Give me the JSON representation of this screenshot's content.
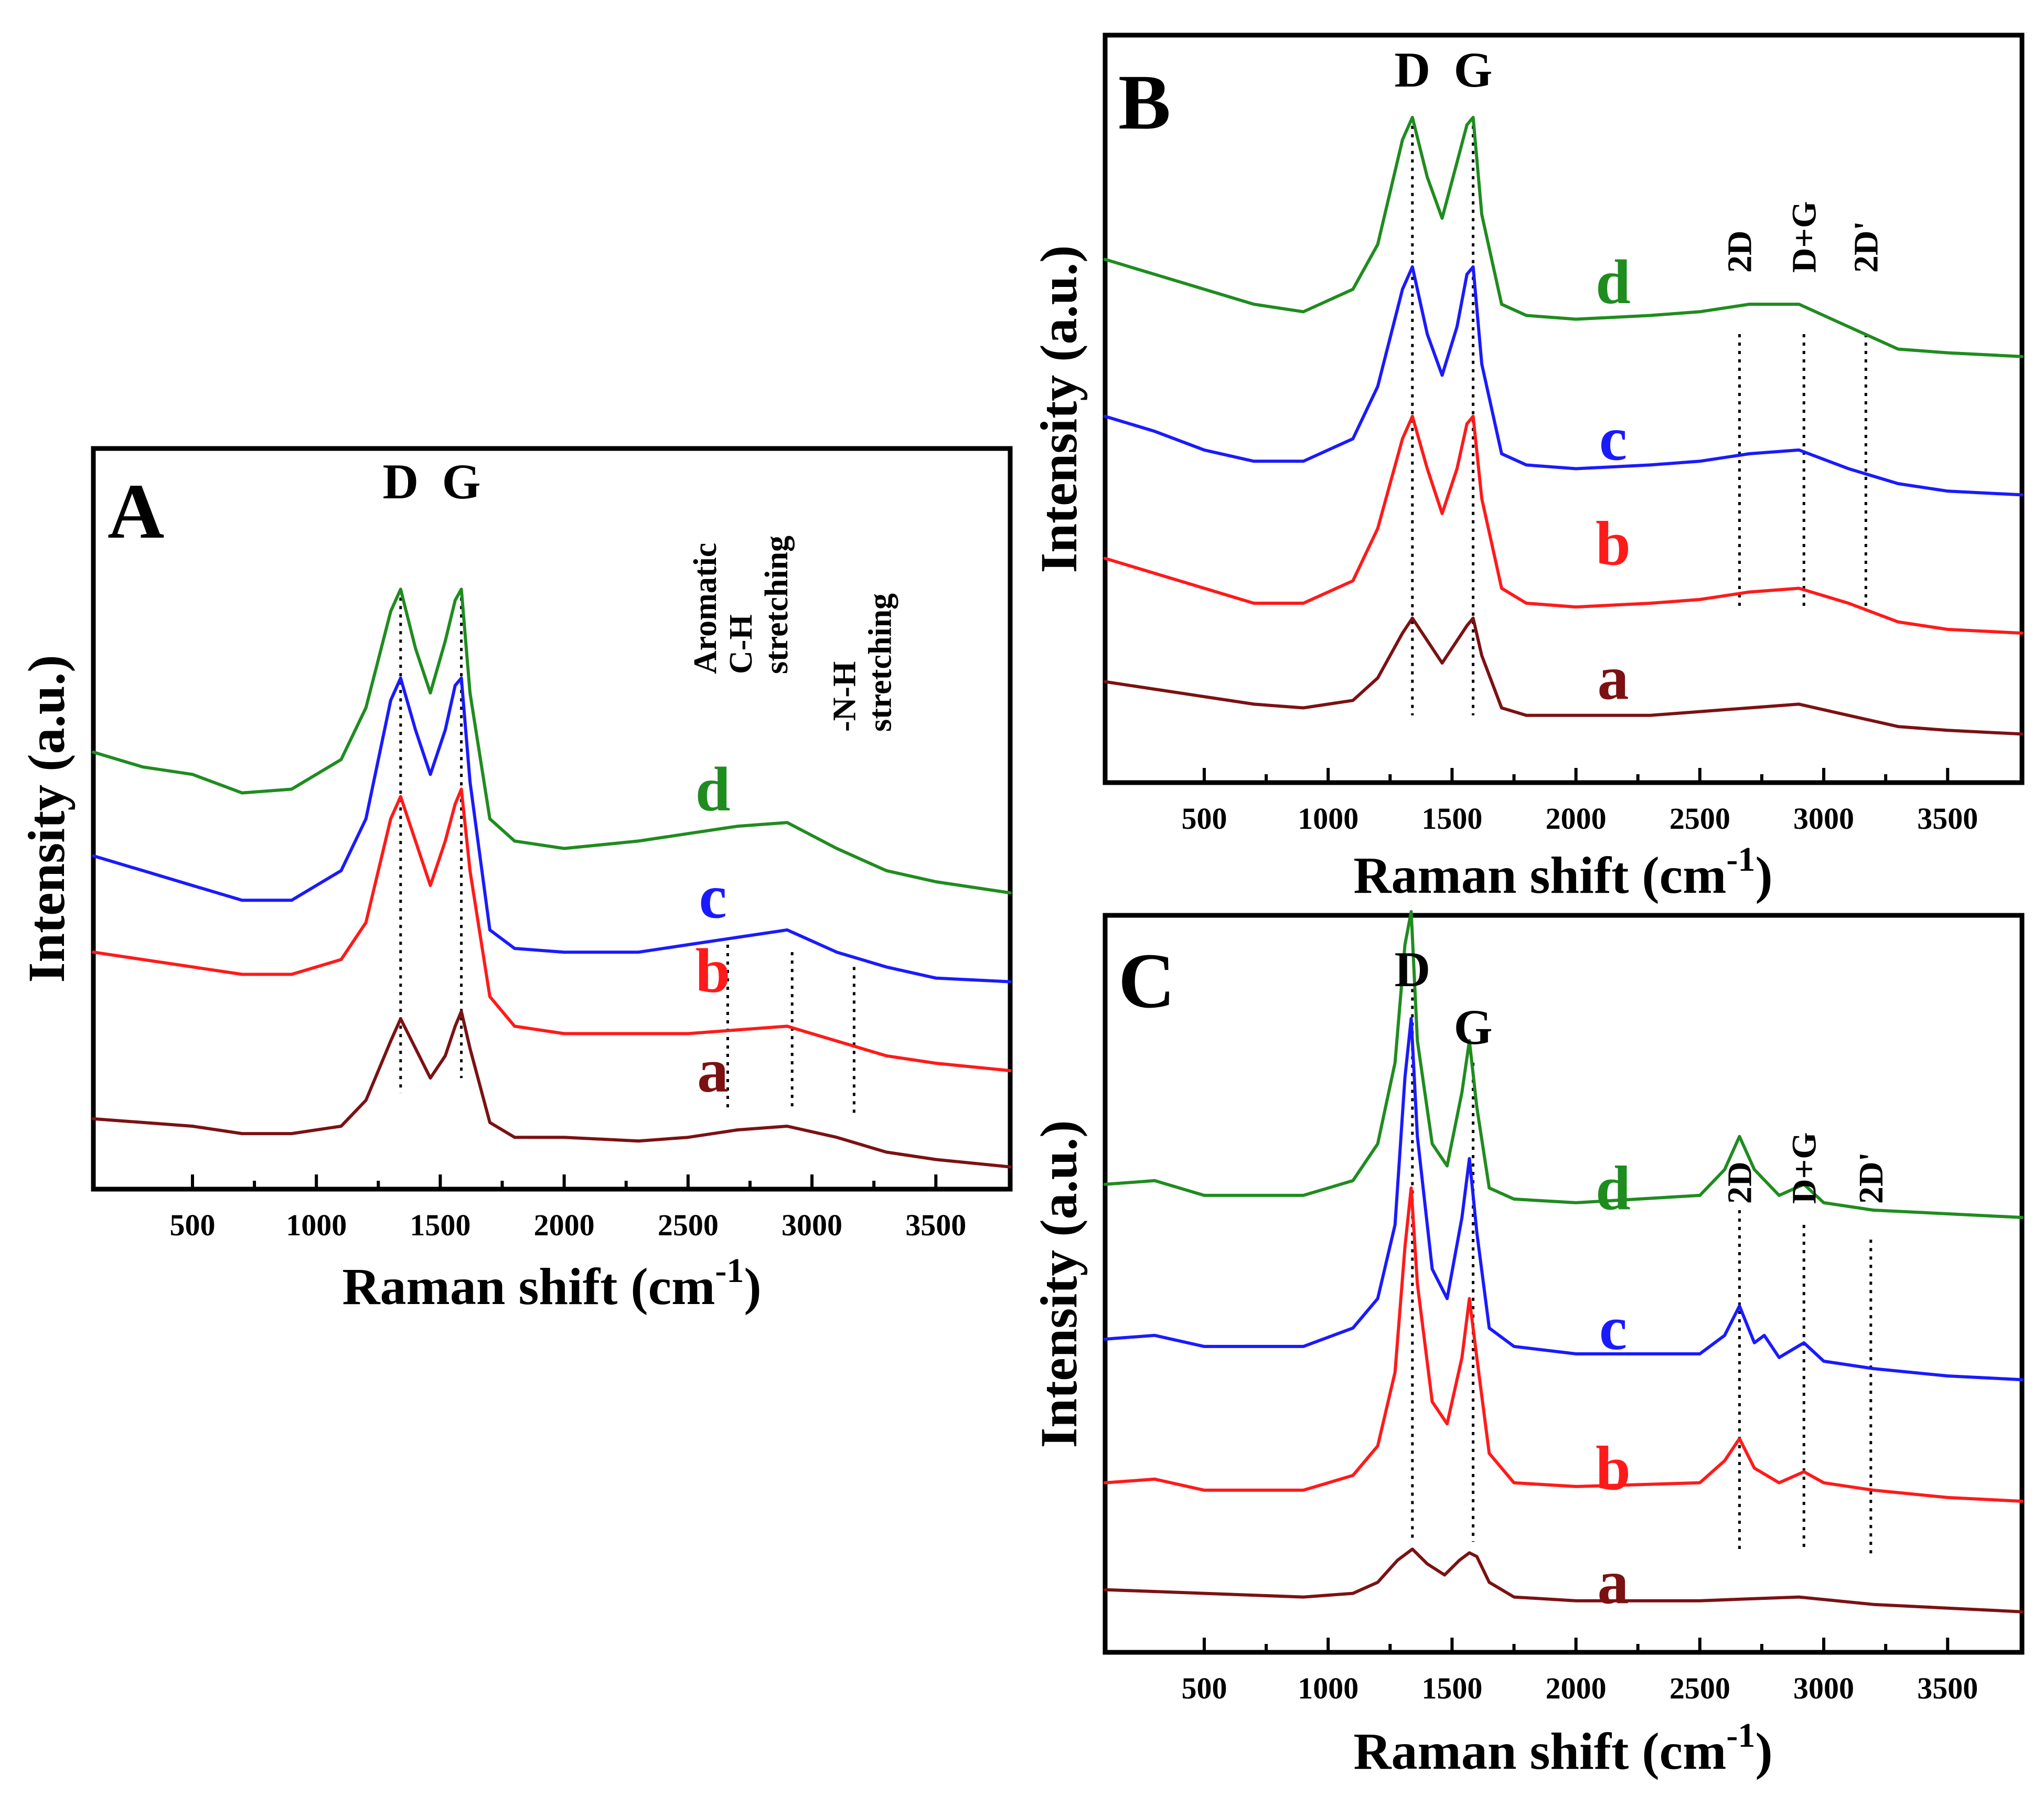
{
  "chart_data": [
    {
      "type": "line",
      "panel_label": "A",
      "xlabel": "Raman shift (cm",
      "xlabel_sup": "-1",
      "xlabel_close": ")",
      "ylabel": "Intensity (a.u.)",
      "xlim": [
        100,
        3800
      ],
      "ylim": [
        0,
        10
      ],
      "xticks": [
        "500",
        "1000",
        "1500",
        "2000",
        "2500",
        "3000",
        "3500"
      ],
      "peak_labels": [
        {
          "text": "D",
          "x": 1340
        },
        {
          "text": "G",
          "x": 1585
        }
      ],
      "guide_lines": [
        {
          "x": 1340,
          "y_top": 8.1,
          "y_bottom": 1.3
        },
        {
          "x": 1585,
          "y_top": 8.1,
          "y_bottom": 1.5
        },
        {
          "x": 2660,
          "y_top": 3.3,
          "y_bottom": 1.1
        },
        {
          "x": 2920,
          "y_top": 3.2,
          "y_bottom": 1.1
        },
        {
          "x": 3170,
          "y_top": 3.0,
          "y_bottom": 1.0
        }
      ],
      "annotations": [
        {
          "lines": [
            "Aromatic",
            "C-H",
            "stretching"
          ],
          "x": 2710
        },
        {
          "lines": [
            "-N-H",
            "stretching"
          ],
          "x": 3200
        }
      ],
      "series": [
        {
          "name": "a",
          "color": "#7b1113",
          "x": [
            100,
            300,
            500,
            700,
            900,
            1100,
            1200,
            1300,
            1340,
            1400,
            1460,
            1520,
            1560,
            1585,
            1620,
            1700,
            1800,
            2000,
            2300,
            2500,
            2700,
            2900,
            3100,
            3300,
            3500,
            3800
          ],
          "y": [
            0.95,
            0.9,
            0.85,
            0.75,
            0.75,
            0.85,
            1.2,
            2.0,
            2.3,
            1.9,
            1.5,
            1.8,
            2.2,
            2.4,
            1.9,
            0.9,
            0.7,
            0.7,
            0.65,
            0.7,
            0.8,
            0.85,
            0.7,
            0.5,
            0.4,
            0.3
          ]
        },
        {
          "name": "b",
          "color": "#ff1a1a",
          "x": [
            100,
            300,
            500,
            700,
            900,
            1100,
            1200,
            1300,
            1340,
            1400,
            1460,
            1520,
            1560,
            1585,
            1620,
            1700,
            1800,
            2000,
            2300,
            2500,
            2700,
            2900,
            3100,
            3300,
            3500,
            3800
          ],
          "y": [
            3.2,
            3.1,
            3.0,
            2.9,
            2.9,
            3.1,
            3.6,
            5.0,
            5.3,
            4.7,
            4.1,
            4.7,
            5.2,
            5.4,
            4.3,
            2.6,
            2.2,
            2.1,
            2.1,
            2.1,
            2.15,
            2.2,
            2.0,
            1.8,
            1.7,
            1.6
          ]
        },
        {
          "name": "c",
          "color": "#1a1aff",
          "x": [
            100,
            300,
            500,
            700,
            900,
            1100,
            1200,
            1300,
            1340,
            1400,
            1460,
            1520,
            1560,
            1585,
            1620,
            1700,
            1800,
            2000,
            2300,
            2500,
            2700,
            2900,
            3100,
            3300,
            3500,
            3800
          ],
          "y": [
            4.5,
            4.3,
            4.1,
            3.9,
            3.9,
            4.3,
            5.0,
            6.6,
            6.9,
            6.2,
            5.6,
            6.2,
            6.8,
            6.9,
            5.5,
            3.5,
            3.25,
            3.2,
            3.2,
            3.3,
            3.4,
            3.5,
            3.2,
            3.0,
            2.85,
            2.8
          ]
        },
        {
          "name": "d",
          "color": "#1f8c1f",
          "x": [
            100,
            300,
            500,
            700,
            900,
            1100,
            1200,
            1300,
            1340,
            1400,
            1460,
            1520,
            1560,
            1585,
            1620,
            1700,
            1800,
            2000,
            2300,
            2500,
            2700,
            2900,
            3100,
            3300,
            3500,
            3800
          ],
          "y": [
            5.9,
            5.7,
            5.6,
            5.35,
            5.4,
            5.8,
            6.5,
            7.8,
            8.1,
            7.3,
            6.7,
            7.4,
            7.95,
            8.1,
            6.7,
            5.0,
            4.7,
            4.6,
            4.7,
            4.8,
            4.9,
            4.95,
            4.6,
            4.3,
            4.15,
            4.0
          ]
        }
      ],
      "series_labels": [
        {
          "text": "a",
          "color": "#7b1113",
          "x": 2600,
          "y": 1.6
        },
        {
          "text": "b",
          "color": "#ff1a1a",
          "x": 2600,
          "y": 2.95
        },
        {
          "text": "c",
          "color": "#1a1aff",
          "x": 2600,
          "y": 3.95
        },
        {
          "text": "d",
          "color": "#1f8c1f",
          "x": 2600,
          "y": 5.4
        }
      ]
    },
    {
      "type": "line",
      "panel_label": "B",
      "xlabel": "Raman shift (cm",
      "xlabel_sup": "-1",
      "xlabel_close": ")",
      "ylabel": "Intensity (a.u.)",
      "xlim": [
        100,
        3800
      ],
      "ylim": [
        0,
        10
      ],
      "xticks": [
        "500",
        "1000",
        "1500",
        "2000",
        "2500",
        "3000",
        "3500"
      ],
      "peak_labels": [
        {
          "text": "D",
          "x": 1340
        },
        {
          "text": "G",
          "x": 1585
        }
      ],
      "guide_lines": [
        {
          "x": 1340,
          "y_top": 8.9,
          "y_bottom": 0.9
        },
        {
          "x": 1585,
          "y_top": 8.9,
          "y_bottom": 0.9
        },
        {
          "x": 2660,
          "y_top": 6.0,
          "y_bottom": 2.3
        },
        {
          "x": 2920,
          "y_top": 6.0,
          "y_bottom": 2.3
        },
        {
          "x": 3170,
          "y_top": 6.0,
          "y_bottom": 2.3
        }
      ],
      "rotated_labels": [
        {
          "text": "2D",
          "x": 2660
        },
        {
          "text": "D+G",
          "x": 2920
        },
        {
          "text": "2D'",
          "x": 3170
        }
      ],
      "series": [
        {
          "name": "a",
          "color": "#7b1113",
          "x": [
            100,
            300,
            500,
            700,
            900,
            1100,
            1200,
            1300,
            1340,
            1400,
            1460,
            1520,
            1560,
            1585,
            1620,
            1700,
            1800,
            2000,
            2300,
            2500,
            2700,
            2900,
            3100,
            3300,
            3500,
            3800
          ],
          "y": [
            1.35,
            1.25,
            1.15,
            1.05,
            1.0,
            1.1,
            1.4,
            2.0,
            2.2,
            1.9,
            1.6,
            1.9,
            2.1,
            2.2,
            1.7,
            1.0,
            0.9,
            0.9,
            0.9,
            0.95,
            1.0,
            1.05,
            0.9,
            0.75,
            0.7,
            0.65
          ]
        },
        {
          "name": "b",
          "color": "#ff1a1a",
          "x": [
            100,
            300,
            500,
            700,
            900,
            1100,
            1200,
            1300,
            1340,
            1400,
            1460,
            1520,
            1560,
            1585,
            1620,
            1700,
            1800,
            2000,
            2300,
            2500,
            2700,
            2900,
            3100,
            3300,
            3500,
            3800
          ],
          "y": [
            3.0,
            2.8,
            2.6,
            2.4,
            2.4,
            2.7,
            3.4,
            4.6,
            4.9,
            4.2,
            3.6,
            4.2,
            4.8,
            4.9,
            3.8,
            2.6,
            2.4,
            2.35,
            2.4,
            2.45,
            2.55,
            2.6,
            2.4,
            2.15,
            2.05,
            2.0
          ]
        },
        {
          "name": "c",
          "color": "#1a1aff",
          "x": [
            100,
            300,
            500,
            700,
            900,
            1100,
            1200,
            1300,
            1340,
            1400,
            1460,
            1520,
            1560,
            1585,
            1620,
            1700,
            1800,
            2000,
            2300,
            2500,
            2700,
            2900,
            3100,
            3300,
            3500,
            3800
          ],
          "y": [
            4.9,
            4.7,
            4.45,
            4.3,
            4.3,
            4.6,
            5.3,
            6.6,
            6.9,
            6.0,
            5.45,
            6.1,
            6.8,
            6.9,
            5.6,
            4.4,
            4.25,
            4.2,
            4.25,
            4.3,
            4.4,
            4.45,
            4.2,
            4.0,
            3.9,
            3.85
          ]
        },
        {
          "name": "d",
          "color": "#1f8c1f",
          "x": [
            100,
            300,
            500,
            700,
            900,
            1100,
            1200,
            1300,
            1340,
            1400,
            1460,
            1520,
            1560,
            1585,
            1620,
            1700,
            1800,
            2000,
            2300,
            2500,
            2700,
            2900,
            3100,
            3300,
            3500,
            3800
          ],
          "y": [
            7.0,
            6.8,
            6.6,
            6.4,
            6.3,
            6.6,
            7.2,
            8.6,
            8.9,
            8.1,
            7.55,
            8.3,
            8.8,
            8.9,
            7.6,
            6.4,
            6.25,
            6.2,
            6.25,
            6.3,
            6.4,
            6.4,
            6.1,
            5.8,
            5.75,
            5.7
          ]
        }
      ],
      "series_labels": [
        {
          "text": "a",
          "color": "#7b1113",
          "x": 2150,
          "y": 1.4
        },
        {
          "text": "b",
          "color": "#ff1a1a",
          "x": 2150,
          "y": 3.2
        },
        {
          "text": "c",
          "color": "#1a1aff",
          "x": 2150,
          "y": 4.6
        },
        {
          "text": "d",
          "color": "#1f8c1f",
          "x": 2150,
          "y": 6.7
        }
      ]
    },
    {
      "type": "line",
      "panel_label": "C",
      "xlabel": "Raman shift (cm",
      "xlabel_sup": "-1",
      "xlabel_close": ")",
      "ylabel": "Intensity (a.u.)",
      "xlim": [
        100,
        3800
      ],
      "ylim": [
        0,
        10
      ],
      "xticks": [
        "500",
        "1000",
        "1500",
        "2000",
        "2500",
        "3000",
        "3500"
      ],
      "peak_labels": [
        {
          "text": "D",
          "x": 1340
        },
        {
          "text": "G",
          "x": 1585
        }
      ],
      "guide_lines": [
        {
          "x": 1340,
          "y_top": 9.0,
          "y_bottom": 1.5
        },
        {
          "x": 1585,
          "y_top": 8.0,
          "y_bottom": 1.5
        },
        {
          "x": 2660,
          "y_top": 6.0,
          "y_bottom": 1.4
        },
        {
          "x": 2920,
          "y_top": 5.8,
          "y_bottom": 1.4
        },
        {
          "x": 3190,
          "y_top": 5.6,
          "y_bottom": 1.3
        }
      ],
      "rotated_labels": [
        {
          "text": "2D",
          "x": 2660
        },
        {
          "text": "D+G",
          "x": 2920
        },
        {
          "text": "2D'",
          "x": 3190
        }
      ],
      "series": [
        {
          "name": "a",
          "color": "#7b1113",
          "x": [
            100,
            500,
            900,
            1100,
            1200,
            1280,
            1340,
            1400,
            1470,
            1530,
            1570,
            1600,
            1650,
            1750,
            2000,
            2500,
            2660,
            2900,
            3200,
            3500,
            3800
          ],
          "y": [
            0.85,
            0.8,
            0.75,
            0.8,
            0.95,
            1.25,
            1.4,
            1.2,
            1.05,
            1.25,
            1.35,
            1.3,
            0.95,
            0.75,
            0.7,
            0.7,
            0.72,
            0.75,
            0.65,
            0.6,
            0.55
          ]
        },
        {
          "name": "b",
          "color": "#ff1a1a",
          "x": [
            100,
            300,
            500,
            900,
            1100,
            1200,
            1270,
            1310,
            1335,
            1360,
            1420,
            1480,
            1540,
            1570,
            1600,
            1650,
            1750,
            2000,
            2500,
            2600,
            2660,
            2720,
            2820,
            2920,
            3000,
            3200,
            3500,
            3800
          ],
          "y": [
            2.3,
            2.35,
            2.2,
            2.2,
            2.4,
            2.8,
            3.8,
            5.5,
            6.3,
            5.0,
            3.4,
            3.1,
            4.0,
            4.8,
            4.0,
            2.7,
            2.3,
            2.25,
            2.3,
            2.6,
            2.9,
            2.5,
            2.3,
            2.45,
            2.3,
            2.2,
            2.1,
            2.05
          ]
        },
        {
          "name": "c",
          "color": "#1a1aff",
          "x": [
            100,
            300,
            500,
            900,
            1100,
            1200,
            1270,
            1310,
            1335,
            1360,
            1420,
            1480,
            1540,
            1570,
            1600,
            1650,
            1750,
            2000,
            2500,
            2600,
            2660,
            2720,
            2760,
            2820,
            2920,
            3000,
            3200,
            3500,
            3800
          ],
          "y": [
            4.25,
            4.3,
            4.15,
            4.15,
            4.4,
            4.8,
            5.8,
            7.8,
            8.6,
            7.0,
            5.2,
            4.8,
            5.9,
            6.7,
            5.7,
            4.4,
            4.15,
            4.05,
            4.05,
            4.3,
            4.7,
            4.2,
            4.3,
            4.0,
            4.2,
            3.95,
            3.85,
            3.75,
            3.7
          ]
        },
        {
          "name": "d",
          "color": "#1f8c1f",
          "x": [
            100,
            300,
            500,
            900,
            1100,
            1200,
            1270,
            1310,
            1335,
            1360,
            1420,
            1480,
            1540,
            1570,
            1600,
            1650,
            1750,
            2000,
            2500,
            2600,
            2660,
            2720,
            2820,
            2920,
            3000,
            3200,
            3500,
            3800
          ],
          "y": [
            6.35,
            6.4,
            6.2,
            6.2,
            6.4,
            6.9,
            8.0,
            9.6,
            10.05,
            8.3,
            6.9,
            6.6,
            7.6,
            8.3,
            7.4,
            6.3,
            6.15,
            6.1,
            6.2,
            6.55,
            7.0,
            6.55,
            6.2,
            6.35,
            6.1,
            6.0,
            5.95,
            5.9
          ]
        }
      ],
      "series_labels": [
        {
          "text": "a",
          "color": "#7b1113",
          "x": 2150,
          "y": 0.95
        },
        {
          "text": "b",
          "color": "#ff1a1a",
          "x": 2150,
          "y": 2.5
        },
        {
          "text": "c",
          "color": "#1a1aff",
          "x": 2150,
          "y": 4.4
        },
        {
          "text": "d",
          "color": "#1f8c1f",
          "x": 2150,
          "y": 6.3
        }
      ]
    }
  ]
}
